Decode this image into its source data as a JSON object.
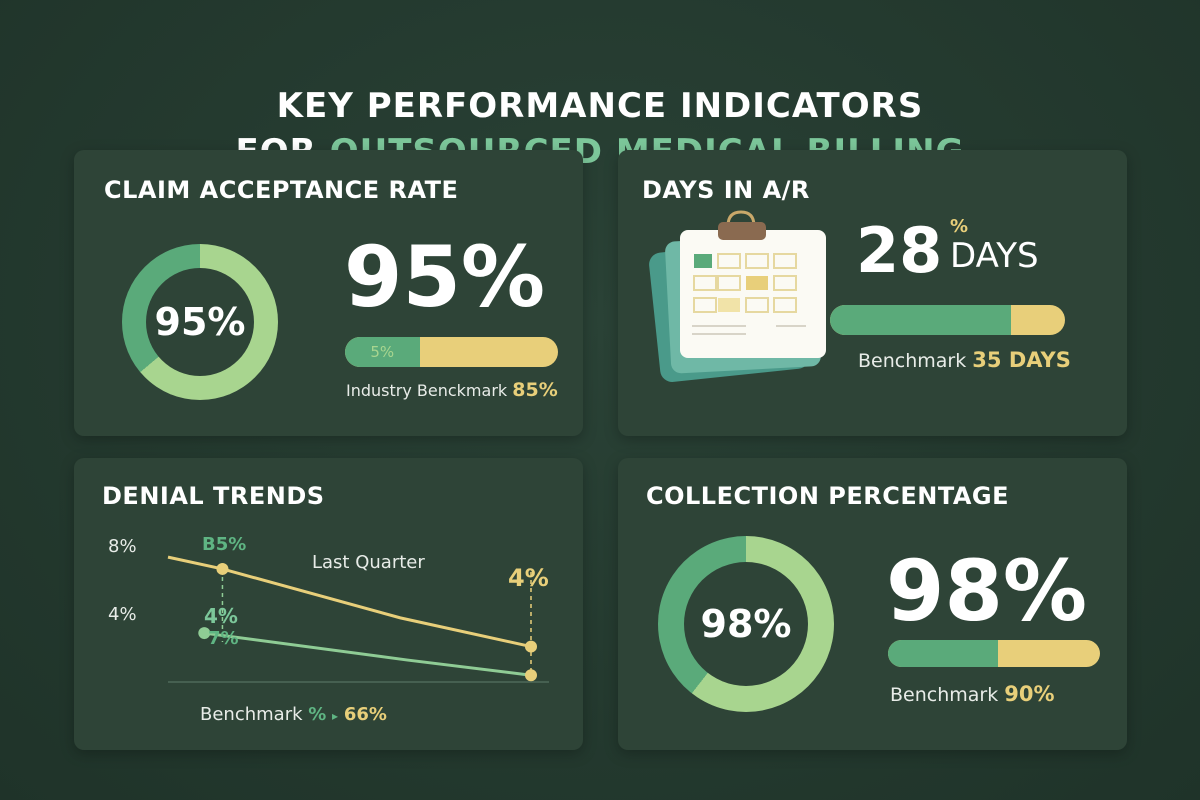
{
  "header": {
    "title_line1": "KEY PERFORMANCE INDICATORS",
    "title_line2_prefix": "FOR ",
    "title_line2_accent": "OUTSOURCED MEDICAL BILLING"
  },
  "colors": {
    "background": "#243a2f",
    "card": "#2e4437",
    "dark_green": "#5aaa7a",
    "light_green": "#a8d58f",
    "yellow": "#e8cf7a",
    "accent": "#7cc79a"
  },
  "claim_acceptance": {
    "title": "CLAIM ACCEPTANCE RATE",
    "donut_label": "95%",
    "value": "95%",
    "bar_label": "5%",
    "bar_fill_percent": 35,
    "benchmark_label": "Industry Benckmark",
    "benchmark_value": "85%"
  },
  "days_in_ar": {
    "title": "DAYS IN A/R",
    "icon": "calendar-icon",
    "value": "28",
    "unit_small": "%",
    "unit": "DAYS",
    "bar_fill_percent": 77,
    "benchmark_label": "Benchmark",
    "benchmark_value": "35 DAYS"
  },
  "denial_trends": {
    "title": "DENIAL TRENDS",
    "annotation": "Last Quarter",
    "point_label_start_top": "B5%",
    "point_label_start_mid": "4%",
    "point_label_start_low": "7%",
    "point_label_end": "4%",
    "benchmark_label": "Benchmark",
    "benchmark_pct": "%",
    "benchmark_value": "66%"
  },
  "collection": {
    "title": "COLLECTION PERCENTAGE",
    "donut_label": "98%",
    "value": "98%",
    "bar_fill_percent": 52,
    "benchmark_label": "Benchmark",
    "benchmark_value": "90%"
  },
  "chart_data": {
    "type": "line",
    "title": "DENIAL TRENDS",
    "yticks": [
      "8%",
      "4%"
    ],
    "ylim": [
      0,
      9
    ],
    "grid": false,
    "series": [
      {
        "color": "#e8cf7a",
        "x": [
          0,
          0.15,
          0.64,
          1
        ],
        "values": [
          7.4,
          6.7,
          3.8,
          2.1
        ]
      },
      {
        "color": "#8fcc95",
        "x": [
          0.1,
          0.66,
          1
        ],
        "values": [
          2.9,
          1.3,
          0.4
        ]
      }
    ]
  }
}
